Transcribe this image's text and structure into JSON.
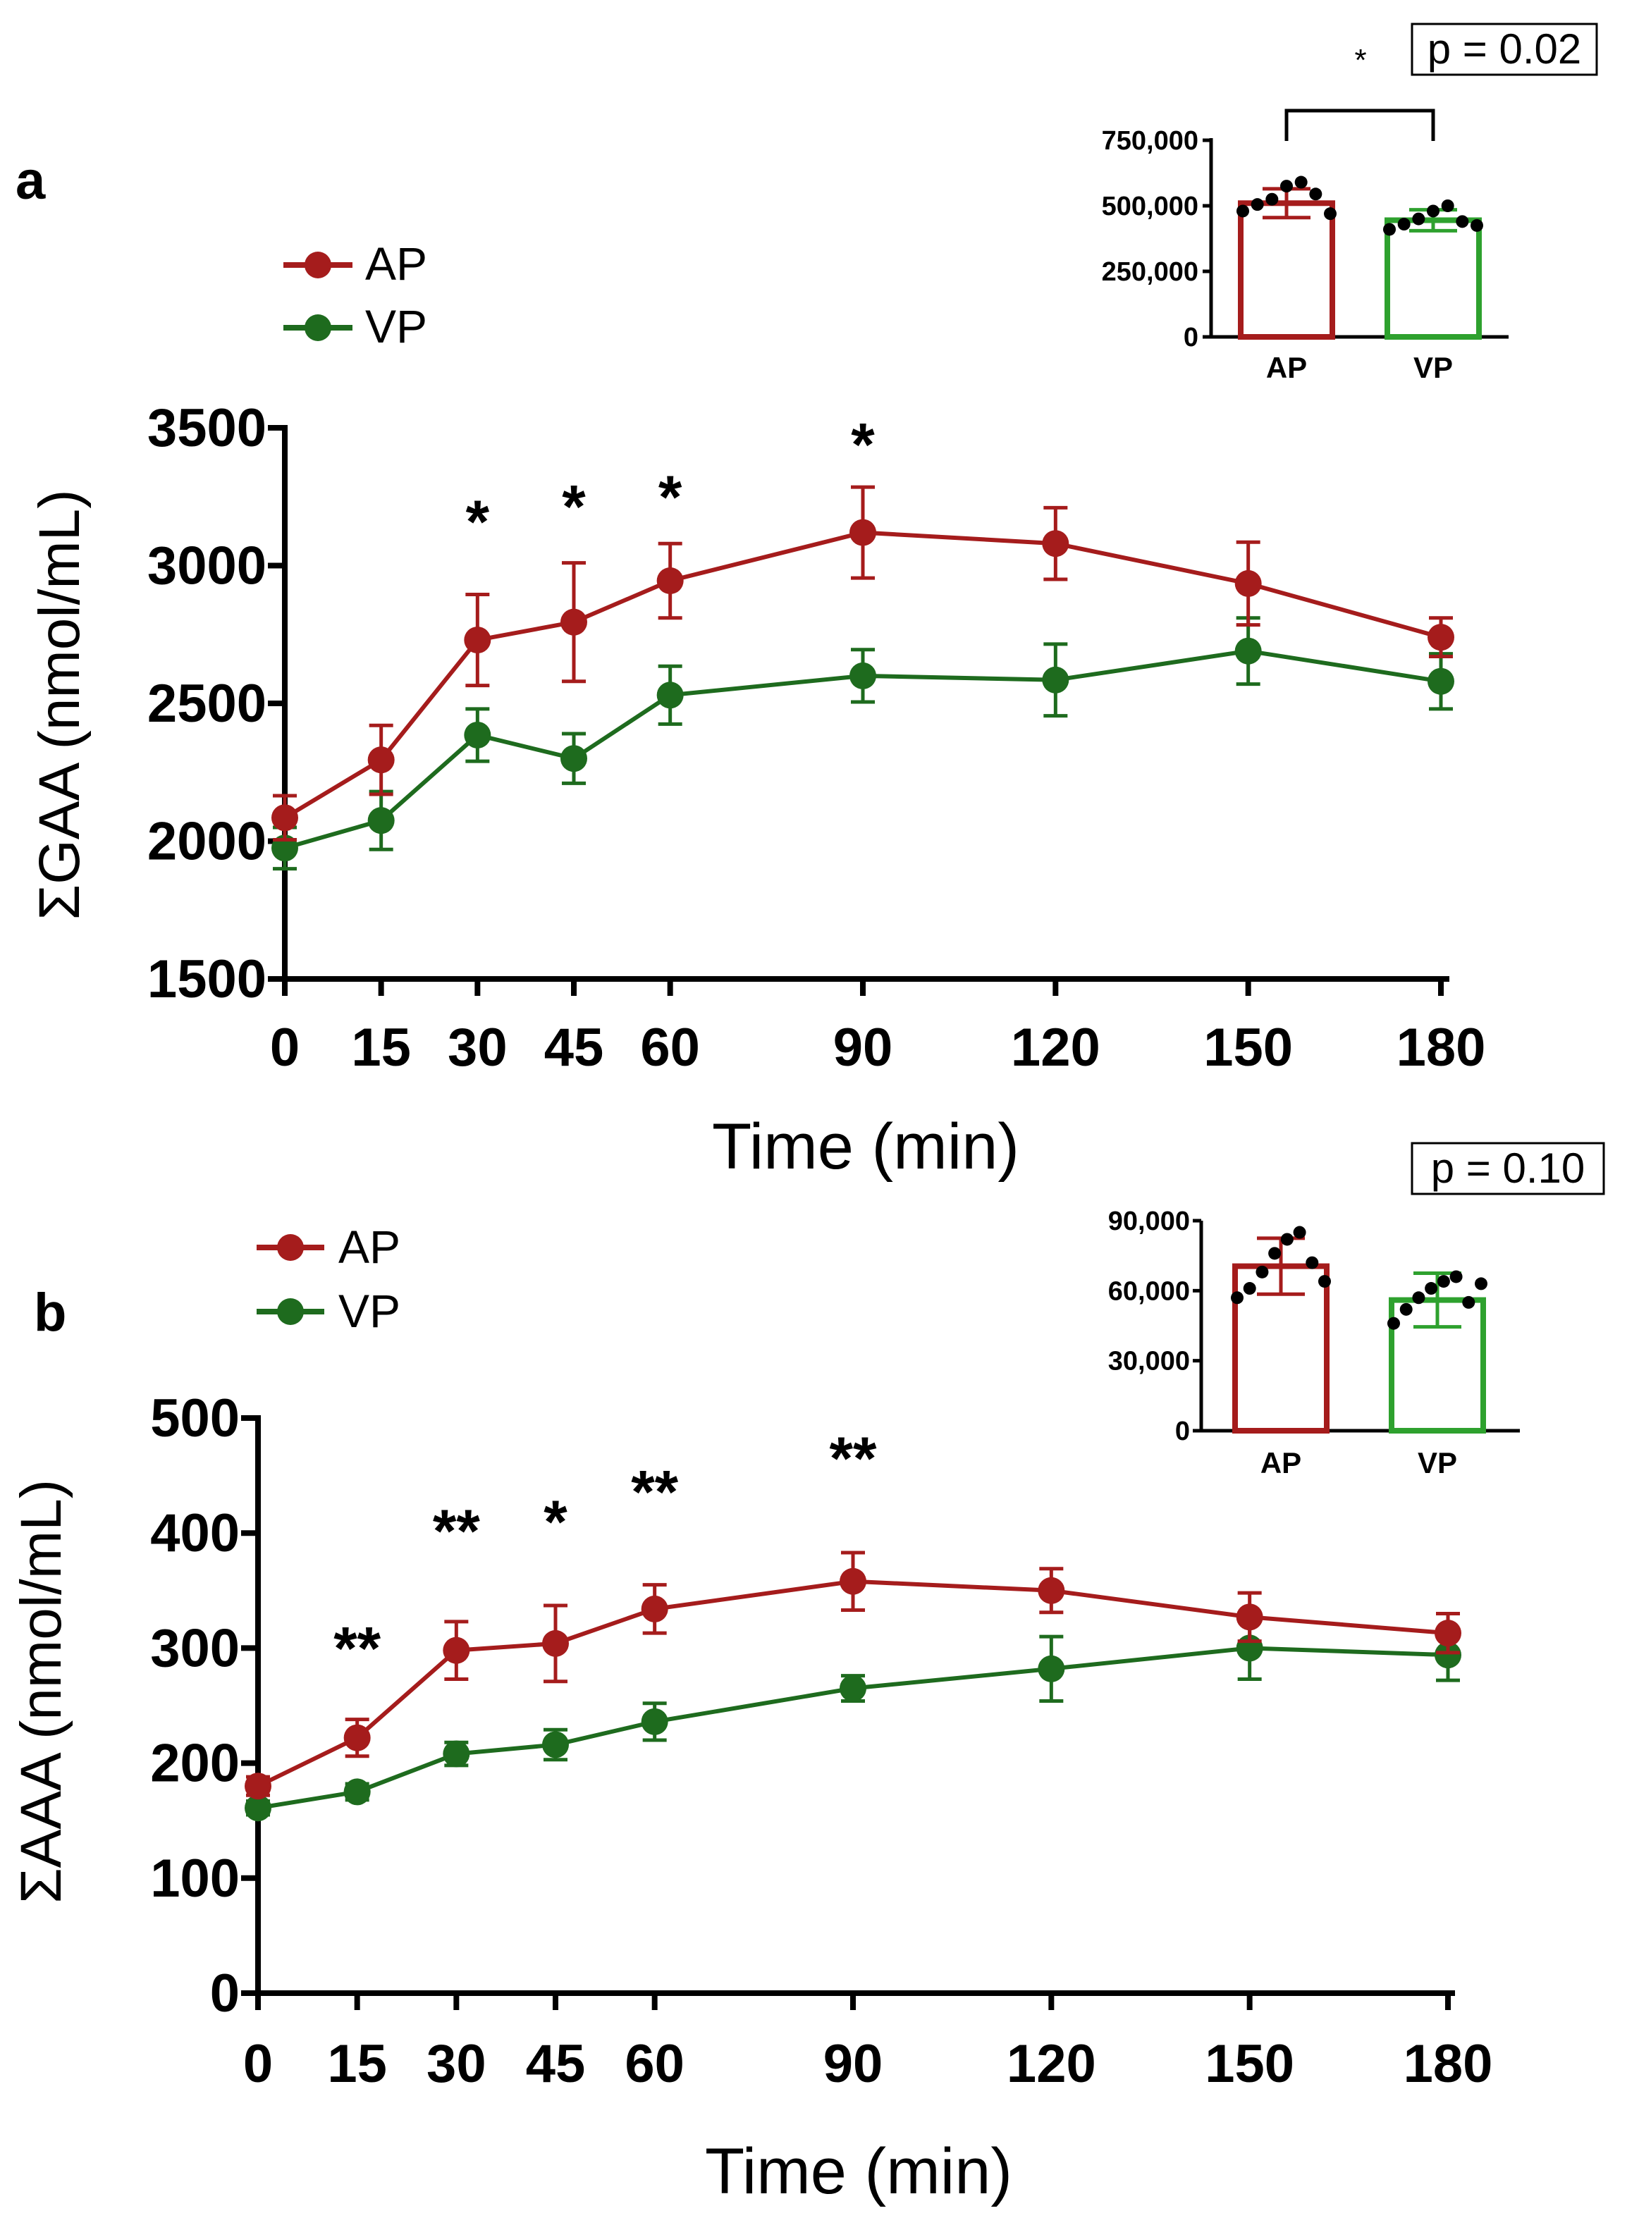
{
  "chart_data": [
    {
      "panel": "a",
      "type": "line",
      "ylabel": "ΣGAA (nmol/mL)",
      "xlabel": "Time (min)",
      "ylim": [
        1500,
        3500
      ],
      "yticks": [
        1500,
        2000,
        2500,
        3000,
        3500
      ],
      "x": [
        0,
        15,
        30,
        45,
        60,
        90,
        120,
        150,
        180
      ],
      "xtick_labels": [
        "0",
        "15",
        "30",
        "45",
        "60",
        "90",
        "120",
        "150",
        "180"
      ],
      "legend": [
        {
          "name": "AP",
          "color": "#A51C1C"
        },
        {
          "name": "VP",
          "color": "#1E6B1E"
        }
      ],
      "series": [
        {
          "name": "AP",
          "color": "#A51C1C",
          "values": [
            2085,
            2295,
            2730,
            2795,
            2945,
            3120,
            3080,
            2935,
            2740
          ],
          "errors": [
            80,
            125,
            165,
            215,
            135,
            165,
            130,
            150,
            70
          ]
        },
        {
          "name": "VP",
          "color": "#1E6B1E",
          "values": [
            1975,
            2075,
            2385,
            2300,
            2530,
            2600,
            2585,
            2690,
            2580
          ],
          "errors": [
            75,
            105,
            95,
            90,
            105,
            95,
            130,
            120,
            100
          ]
        }
      ],
      "significance": [
        {
          "x": 30,
          "label": "*",
          "y": 3160
        },
        {
          "x": 45,
          "label": "*",
          "y": 3215
        },
        {
          "x": 60,
          "label": "*",
          "y": 3250
        },
        {
          "x": 90,
          "label": "*",
          "y": 3440
        }
      ],
      "inset": {
        "type": "bar",
        "categories": [
          "AP",
          "VP"
        ],
        "values": [
          510000,
          445000
        ],
        "errors": [
          55000,
          40000
        ],
        "colors": [
          "#A51C1C",
          "#2EA12E"
        ],
        "ylim": [
          0,
          750000
        ],
        "yticks": [
          0,
          250000,
          500000,
          750000
        ],
        "ytick_labels": [
          "0",
          "250,000",
          "500,000",
          "750,000"
        ],
        "points": [
          [
            480000,
            505000,
            525000,
            575000,
            590000,
            545000,
            470000
          ],
          [
            410000,
            430000,
            450000,
            480000,
            500000,
            440000,
            425000
          ]
        ],
        "bracket_label": "*",
        "pvalue": "p = 0.02"
      }
    },
    {
      "panel": "b",
      "type": "line",
      "ylabel": "ΣAAA (nmol/mL)",
      "xlabel": "Time (min)",
      "ylim": [
        0,
        500
      ],
      "yticks": [
        0,
        100,
        200,
        300,
        400,
        500
      ],
      "x": [
        0,
        15,
        30,
        45,
        60,
        90,
        120,
        150,
        180
      ],
      "xtick_labels": [
        "0",
        "15",
        "30",
        "45",
        "60",
        "90",
        "120",
        "150",
        "180"
      ],
      "legend": [
        {
          "name": "AP",
          "color": "#A51C1C"
        },
        {
          "name": "VP",
          "color": "#1E6B1E"
        }
      ],
      "series": [
        {
          "name": "AP",
          "color": "#A51C1C",
          "values": [
            180,
            222,
            298,
            304,
            334,
            358,
            350,
            327,
            313
          ],
          "errors": [
            8,
            16,
            25,
            33,
            21,
            25,
            19,
            21,
            17
          ]
        },
        {
          "name": "VP",
          "color": "#1E6B1E",
          "values": [
            161,
            175,
            208,
            216,
            236,
            265,
            282,
            300,
            294
          ],
          "errors": [
            6,
            7,
            10,
            13,
            16,
            11,
            28,
            27,
            22
          ]
        }
      ],
      "significance": [
        {
          "x": 15,
          "label": "**",
          "y": 300
        },
        {
          "x": 30,
          "label": "**",
          "y": 402
        },
        {
          "x": 45,
          "label": "*",
          "y": 410
        },
        {
          "x": 60,
          "label": "**",
          "y": 436
        },
        {
          "x": 90,
          "label": "**",
          "y": 465
        }
      ],
      "inset": {
        "type": "bar",
        "categories": [
          "AP",
          "VP"
        ],
        "values": [
          70500,
          56000
        ],
        "errors": [
          12000,
          11500
        ],
        "colors": [
          "#A51C1C",
          "#2EA12E"
        ],
        "ylim": [
          0,
          90000
        ],
        "yticks": [
          0,
          30000,
          60000,
          90000
        ],
        "ytick_labels": [
          "0",
          "30,000",
          "60,000",
          "90,000"
        ],
        "points": [
          [
            57000,
            61000,
            68000,
            76000,
            82000,
            85000,
            72000,
            64000
          ],
          [
            46000,
            52000,
            57000,
            61000,
            64000,
            66000,
            55000,
            63000
          ]
        ],
        "pvalue": "p = 0.10"
      }
    }
  ]
}
